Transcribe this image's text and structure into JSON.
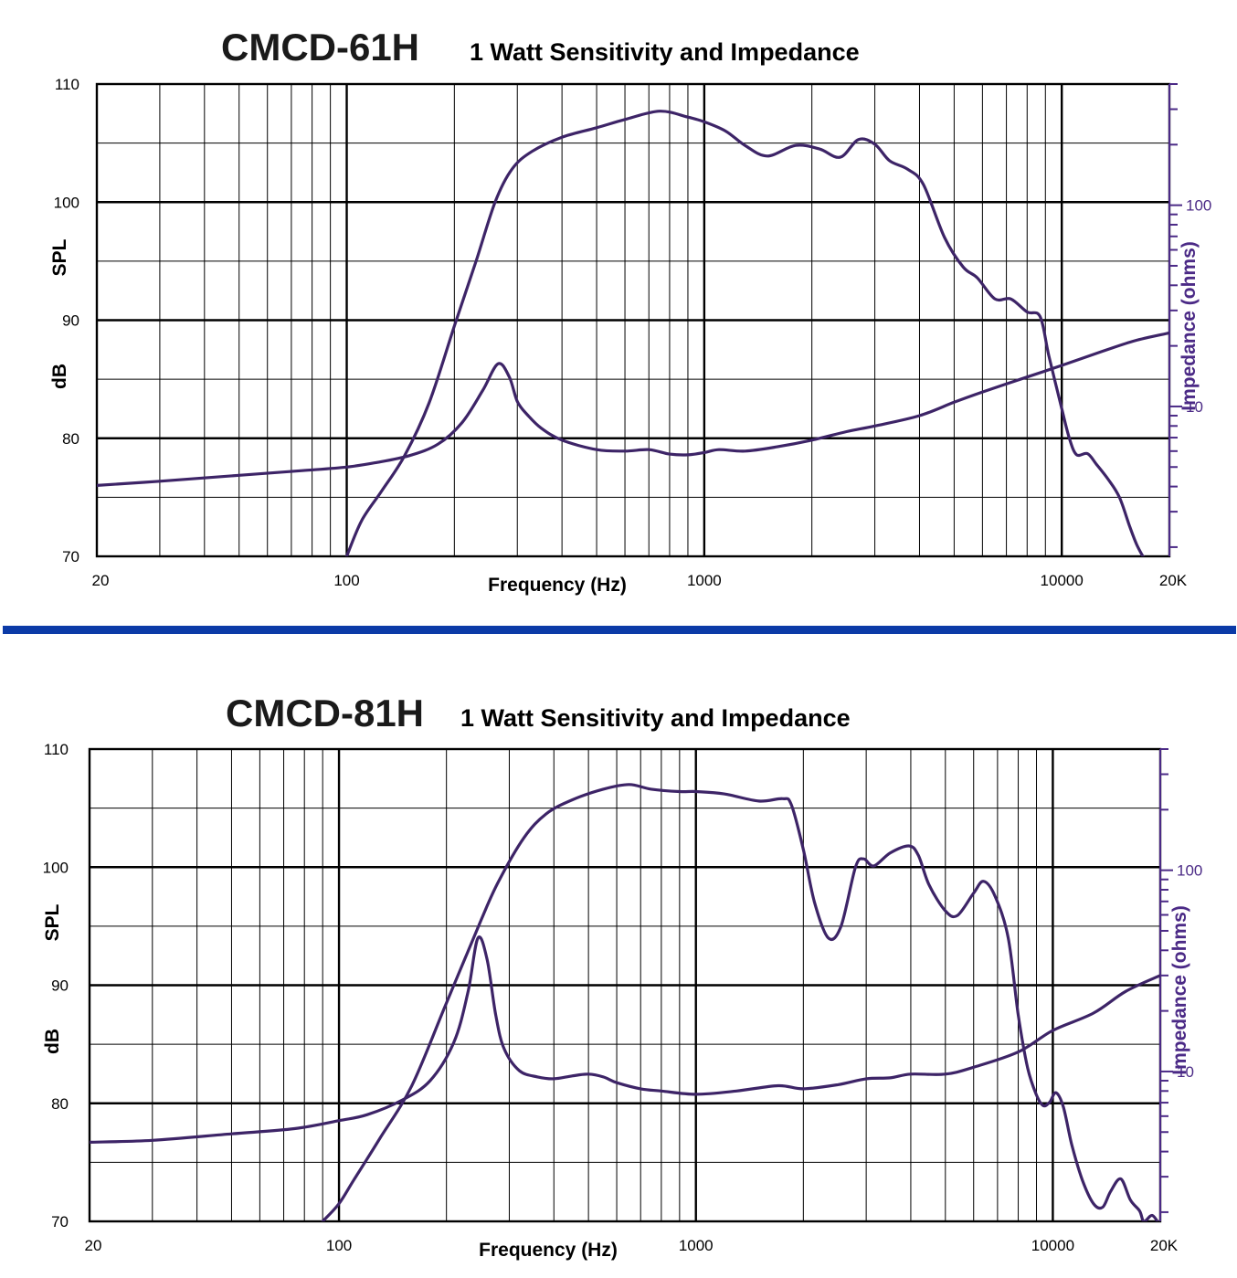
{
  "chart_data": [
    {
      "type": "line",
      "model": "CMCD-61H",
      "title": "1 Watt Sensitivity and Impedance",
      "xlabel": "Frequency (Hz)",
      "ylabel_top": "SPL",
      "ylabel_bottom": "dB",
      "y2label": "Impedance (ohms)",
      "xscale": "log",
      "xlim": [
        20,
        20000
      ],
      "ylim": [
        70,
        110
      ],
      "y2scale": "log",
      "y2lim": [
        1.8,
        400
      ],
      "xticks": [
        {
          "value": 20,
          "label": "20"
        },
        {
          "value": 100,
          "label": "100"
        },
        {
          "value": 1000,
          "label": "1000"
        },
        {
          "value": 10000,
          "label": "10000"
        },
        {
          "value": 20000,
          "label": "20K"
        }
      ],
      "yticks": [
        {
          "value": 70,
          "label": "70"
        },
        {
          "value": 80,
          "label": "80"
        },
        {
          "value": 90,
          "label": "90"
        },
        {
          "value": 100,
          "label": "100"
        },
        {
          "value": 110,
          "label": "110"
        }
      ],
      "y2ticks": [
        {
          "value": 10,
          "label": "10"
        },
        {
          "value": 100,
          "label": "100"
        }
      ],
      "grid": true,
      "line_color": "#3d2467",
      "series": [
        {
          "name": "SPL",
          "axis": "left",
          "x": [
            100,
            110,
            125,
            145,
            170,
            200,
            230,
            260,
            290,
            330,
            400,
            500,
            600,
            750,
            900,
            1000,
            1150,
            1300,
            1500,
            1800,
            2100,
            2400,
            2700,
            3000,
            3300,
            3700,
            4100,
            4700,
            5300,
            5800,
            6500,
            7200,
            8000,
            8700,
            9200,
            10000,
            10500,
            11000,
            11800,
            12500,
            13500,
            14500,
            15500,
            16200,
            17000
          ],
          "y": [
            70,
            73,
            75.5,
            78.5,
            83,
            89.5,
            95,
            100,
            102.8,
            104.3,
            105.5,
            106.3,
            107,
            107.7,
            107.2,
            106.8,
            106,
            104.8,
            103.9,
            104.8,
            104.5,
            103.8,
            105.3,
            104.9,
            103.5,
            102.8,
            101.5,
            97,
            94.5,
            93.6,
            91.8,
            91.8,
            90.7,
            90.3,
            87,
            82.5,
            80,
            78.6,
            78.7,
            77.8,
            76.5,
            75,
            72.5,
            71,
            69.8
          ]
        },
        {
          "name": "Impedance",
          "axis": "right",
          "x": [
            20,
            30,
            50,
            75,
            100,
            120,
            150,
            180,
            210,
            240,
            265,
            285,
            300,
            320,
            350,
            400,
            500,
            600,
            700,
            800,
            900,
            1000,
            1100,
            1300,
            1600,
            2000,
            2500,
            3000,
            4000,
            5000,
            6000,
            8000,
            10000,
            13000,
            16000,
            20000
          ],
          "y": [
            4.05,
            4.25,
            4.55,
            4.8,
            5.0,
            5.25,
            5.7,
            6.5,
            8.3,
            12,
            16.3,
            14,
            10.6,
            9.1,
            7.8,
            6.8,
            6.1,
            6.0,
            6.1,
            5.8,
            5.75,
            5.9,
            6.1,
            6.0,
            6.3,
            6.8,
            7.5,
            8.0,
            9.0,
            10.5,
            11.8,
            14,
            16,
            18.8,
            21.2,
            23.2
          ]
        }
      ]
    },
    {
      "type": "line",
      "model": "CMCD-81H",
      "title": "1 Watt Sensitivity and Impedance",
      "xlabel": "Frequency (Hz)",
      "ylabel_top": "SPL",
      "ylabel_bottom": "dB",
      "y2label": "Impedance (ohms)",
      "xscale": "log",
      "xlim": [
        20,
        20000
      ],
      "ylim": [
        70,
        110
      ],
      "y2scale": "log",
      "y2lim": [
        1.8,
        400
      ],
      "xticks": [
        {
          "value": 20,
          "label": "20"
        },
        {
          "value": 100,
          "label": "100"
        },
        {
          "value": 1000,
          "label": "1000"
        },
        {
          "value": 10000,
          "label": "10000"
        },
        {
          "value": 20000,
          "label": "20K"
        }
      ],
      "yticks": [
        {
          "value": 70,
          "label": "70"
        },
        {
          "value": 80,
          "label": "80"
        },
        {
          "value": 90,
          "label": "90"
        },
        {
          "value": 100,
          "label": "100"
        },
        {
          "value": 110,
          "label": "110"
        }
      ],
      "y2ticks": [
        {
          "value": 10,
          "label": "10"
        },
        {
          "value": 100,
          "label": "100"
        }
      ],
      "grid": true,
      "line_color": "#3d2467",
      "series": [
        {
          "name": "SPL",
          "axis": "left",
          "x": [
            90,
            100,
            110,
            130,
            160,
            200,
            250,
            280,
            330,
            380,
            450,
            550,
            650,
            750,
            900,
            1000,
            1200,
            1500,
            1750,
            1850,
            2000,
            2150,
            2350,
            2550,
            2800,
            2950,
            3150,
            3500,
            3950,
            4200,
            4500,
            5000,
            5400,
            6000,
            6400,
            6900,
            7500,
            8000,
            8500,
            9000,
            9400,
            9800,
            10200,
            10700,
            11300,
            12100,
            13000,
            13800,
            14500,
            15500,
            16500,
            17500,
            18000,
            19000,
            20000
          ],
          "y": [
            70,
            71.5,
            73.5,
            77,
            81.5,
            88.5,
            95.5,
            98.8,
            102.5,
            104.5,
            105.7,
            106.6,
            107,
            106.6,
            106.4,
            106.4,
            106.2,
            105.6,
            105.8,
            105.3,
            101.5,
            97,
            94,
            95,
            100,
            100.7,
            100.1,
            101.2,
            101.8,
            101,
            98.5,
            96.3,
            95.9,
            97.8,
            98.8,
            97.5,
            94,
            87.5,
            83,
            80.7,
            79.8,
            80.1,
            80.9,
            79.7,
            76.5,
            73.5,
            71.5,
            71.2,
            72.5,
            73.6,
            71.8,
            70.9,
            70,
            70.5,
            69.6
          ]
        },
        {
          "name": "Impedance",
          "axis": "right",
          "x": [
            20,
            30,
            50,
            75,
            100,
            120,
            150,
            180,
            210,
            230,
            245,
            260,
            275,
            290,
            320,
            360,
            400,
            450,
            500,
            550,
            600,
            700,
            800,
            1000,
            1300,
            1700,
            2000,
            2500,
            3000,
            3500,
            4000,
            5000,
            6000,
            8000,
            10000,
            13000,
            16000,
            20000
          ],
          "y": [
            4.45,
            4.55,
            4.9,
            5.2,
            5.7,
            6.1,
            7.2,
            9.0,
            14,
            25,
            46,
            36,
            19,
            13,
            10.1,
            9.4,
            9.2,
            9.5,
            9.7,
            9.4,
            8.8,
            8.2,
            8.0,
            7.7,
            8.0,
            8.5,
            8.2,
            8.6,
            9.2,
            9.3,
            9.7,
            9.7,
            10.5,
            12.5,
            16,
            19.5,
            25,
            30
          ]
        }
      ]
    }
  ]
}
